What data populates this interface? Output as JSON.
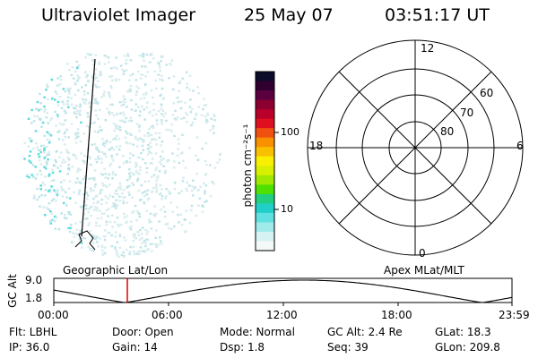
{
  "header": {
    "instrument": "Ultraviolet Imager",
    "date": "25 May 07",
    "time": "03:51:17 UT"
  },
  "colorbar": {
    "unit_label": "photon cm⁻²s⁻¹",
    "ticks": [
      "100",
      "10"
    ],
    "colors": [
      "#0b0b2a",
      "#300030",
      "#5a0040",
      "#8c0030",
      "#b8002a",
      "#de1020",
      "#f05010",
      "#f89000",
      "#f8c000",
      "#f8f000",
      "#d8f000",
      "#a0e800",
      "#50e000",
      "#20d080",
      "#20d0c8",
      "#60e0e0",
      "#a0eaea",
      "#d6f2f2",
      "#f4f8f8"
    ]
  },
  "polar": {
    "lat_labels": [
      "60",
      "70",
      "80"
    ],
    "mlt_labels": {
      "top": "12",
      "left": "18",
      "right": "6",
      "bottom": "0"
    }
  },
  "coord_labels": {
    "left": "Geographic Lat/Lon",
    "right": "Apex MLat/MLT"
  },
  "timeline": {
    "axis_label": "GC Alt",
    "y_ticks": [
      "9.0",
      "1.8"
    ],
    "x_ticks": [
      "00:00",
      "06:00",
      "12:00",
      "18:00",
      "23:59"
    ],
    "marker_color": "#e00000"
  },
  "info": {
    "flt": "Flt: LBHL",
    "door": "Door: Open",
    "mode": "Mode: Normal",
    "gc_alt": "GC Alt: 2.4 Re",
    "glat": "GLat:  18.3",
    "ip": "IP: 36.0",
    "gain": "Gain: 14",
    "dsp": "Dsp:    1.8",
    "seq": "Seq: 39",
    "glon": "GLon: 209.8"
  }
}
